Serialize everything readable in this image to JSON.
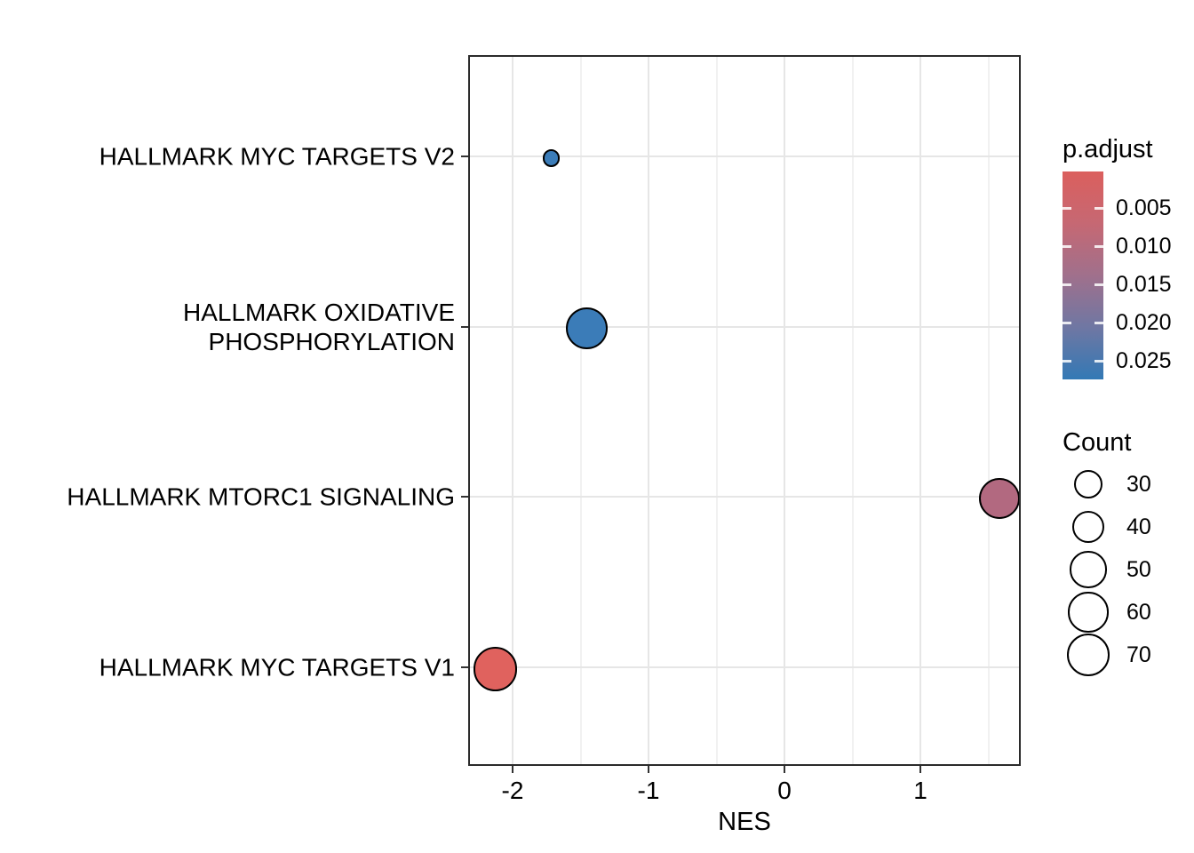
{
  "figure": {
    "background": "#ffffff"
  },
  "chart_data": {
    "type": "scatter",
    "subtype": "gsea-dotplot",
    "title": "",
    "xlabel": "NES",
    "ylabel": "",
    "xlim": [
      -2.33,
      1.74
    ],
    "x_ticks": [
      -2,
      -1,
      0,
      1
    ],
    "x_tick_labels": [
      "-2",
      "-1",
      "0",
      "1"
    ],
    "x_minor_ticks": [
      -1.5,
      -0.5,
      0.5,
      1.5
    ],
    "grid": true,
    "categories": [
      "HALLMARK MYC TARGETS V2",
      "HALLMARK OXIDATIVE PHOSPHORYLATION",
      "HALLMARK MTORC1 SIGNALING",
      "HALLMARK MYC TARGETS V1"
    ],
    "points": [
      {
        "pathway": "HALLMARK MYC TARGETS V2",
        "category_index": 0,
        "NES": -1.73,
        "count": 11,
        "p_adjust": 0.027,
        "color": "#3b7cb8"
      },
      {
        "pathway": "HALLMARK OXIDATIVE PHOSPHORYLATION",
        "category_index": 1,
        "NES": -1.47,
        "count": 65,
        "p_adjust": 0.027,
        "color": "#3b7cb8"
      },
      {
        "pathway": "HALLMARK MTORC1 SIGNALING",
        "category_index": 2,
        "NES": 1.57,
        "count": 62,
        "p_adjust": 0.01,
        "color": "#b26980"
      },
      {
        "pathway": "HALLMARK MYC TARGETS V1",
        "category_index": 3,
        "NES": -2.14,
        "count": 72,
        "p_adjust": 0.0005,
        "color": "#e0625e"
      }
    ],
    "legend_color": {
      "title": "p.adjust",
      "position": "right-top",
      "tick_values": [
        0.005,
        0.01,
        0.015,
        0.02,
        0.025
      ],
      "tick_labels": [
        "0.005",
        "0.010",
        "0.015",
        "0.020",
        "0.025"
      ],
      "domain": [
        0.0002,
        0.0274
      ],
      "gradient_stops": [
        "#db5f5d",
        "#c66873",
        "#a0708c",
        "#6f77a3",
        "#3379b5"
      ]
    },
    "legend_size": {
      "title": "Count",
      "values": [
        30,
        40,
        50,
        60,
        70
      ],
      "labels": [
        "30",
        "40",
        "50",
        "60",
        "70"
      ]
    }
  },
  "y_axis_labels": [
    {
      "lines": [
        "HALLMARK MYC TARGETS V2"
      ]
    },
    {
      "lines": [
        "HALLMARK OXIDATIVE",
        "PHOSPHORYLATION"
      ]
    },
    {
      "lines": [
        "HALLMARK MTORC1 SIGNALING"
      ]
    },
    {
      "lines": [
        "HALLMARK MYC TARGETS V1"
      ]
    }
  ]
}
